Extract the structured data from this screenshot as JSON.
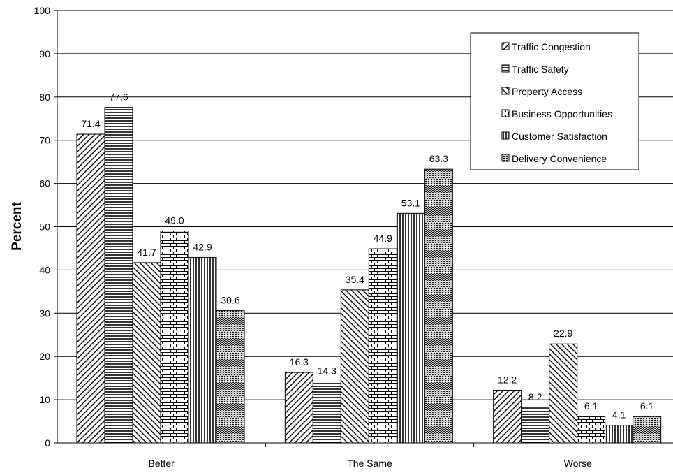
{
  "chart_data": {
    "type": "bar",
    "title": "",
    "xlabel": "",
    "ylabel": "Percent",
    "ylim": [
      0,
      100
    ],
    "yticks": [
      0,
      10,
      20,
      30,
      40,
      50,
      60,
      70,
      80,
      90,
      100
    ],
    "grid": "horizontal",
    "legend_position": "top-right",
    "categories": [
      "Better",
      "The Same",
      "Worse"
    ],
    "series": [
      {
        "name": "Traffic Congestion",
        "pattern": "diagonal-up",
        "values": [
          71.4,
          16.3,
          12.2
        ],
        "labels": [
          "71.4",
          "16.3",
          "12.2"
        ]
      },
      {
        "name": "Traffic Safety",
        "pattern": "horizontal-lines",
        "values": [
          77.6,
          14.3,
          8.2
        ],
        "labels": [
          "77.6",
          "14.3",
          "8.2"
        ]
      },
      {
        "name": "Property Access",
        "pattern": "diagonal-down",
        "values": [
          41.7,
          35.4,
          22.9
        ],
        "labels": [
          "41.7",
          "35.4",
          "22.9"
        ]
      },
      {
        "name": "Business Opportunities",
        "pattern": "brick",
        "values": [
          49.0,
          44.9,
          6.1
        ],
        "labels": [
          "49.0",
          "44.9",
          "6.1"
        ]
      },
      {
        "name": "Customer Satisfaction",
        "pattern": "vertical-lines",
        "values": [
          42.9,
          53.1,
          4.1
        ],
        "labels": [
          "42.9",
          "53.1",
          "4.1"
        ]
      },
      {
        "name": "Delivery Convenience",
        "pattern": "wave",
        "values": [
          30.6,
          63.3,
          6.1
        ],
        "labels": [
          "30.6",
          "63.3",
          "6.1"
        ]
      }
    ]
  }
}
